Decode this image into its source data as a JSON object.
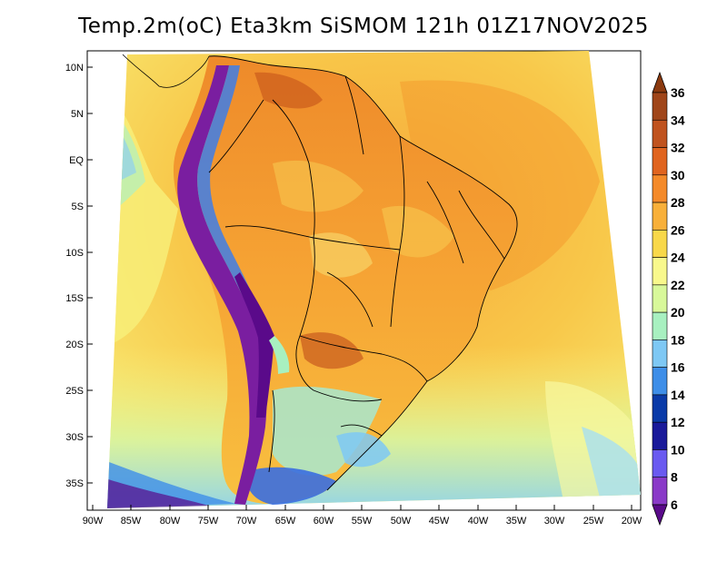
{
  "map": {
    "title": "Temp.2m(oC) Eta3km SiSMOM 121h 01Z17NOV2025",
    "lat_labels": [
      "10N",
      "5N",
      "EQ",
      "5S",
      "10S",
      "15S",
      "20S",
      "25S",
      "30S",
      "35S"
    ],
    "lon_labels": [
      "90W",
      "85W",
      "80W",
      "75W",
      "70W",
      "65W",
      "60W",
      "55W",
      "50W",
      "45W",
      "40W",
      "35W",
      "30W",
      "25W",
      "20W"
    ],
    "colorbar": {
      "labels": [
        "36",
        "34",
        "32",
        "30",
        "28",
        "26",
        "24",
        "22",
        "20",
        "18",
        "16",
        "14",
        "12",
        "10",
        "8",
        "6"
      ],
      "colors": [
        "#8b3a0f",
        "#a0461a",
        "#c0531f",
        "#e0641f",
        "#f48a2a",
        "#f8b03a",
        "#f8d84a",
        "#f8f88c",
        "#d8f89a",
        "#a8f0c0",
        "#7ec8f4",
        "#3e8ee8",
        "#0a3aa8",
        "#1a1a9a",
        "#6a5af0",
        "#8a3ac8",
        "#5a0a8a"
      ]
    }
  }
}
